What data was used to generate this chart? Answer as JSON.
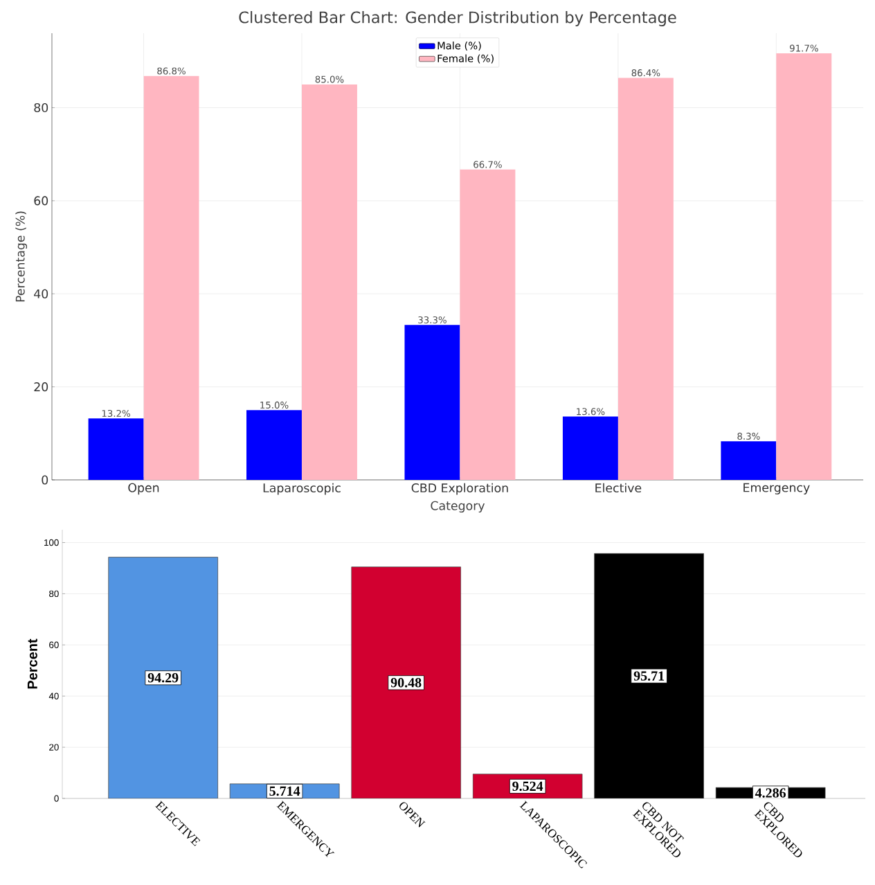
{
  "chart_data": [
    {
      "type": "bar",
      "title": "Clustered Bar Chart: Gender Distribution by Percentage",
      "xlabel": "Category",
      "ylabel": "Percentage (%)",
      "categories": [
        "Open",
        "Laparoscopic",
        "CBD Exploration",
        "Elective",
        "Emergency"
      ],
      "series": [
        {
          "name": "Male (%)",
          "color": "#0000ff",
          "values": [
            13.2,
            15.0,
            33.3,
            13.6,
            8.3
          ],
          "value_labels": [
            "13.2%",
            "15.0%",
            "33.3%",
            "13.6%",
            "8.3%"
          ]
        },
        {
          "name": "Female (%)",
          "color": "#ffb6c1",
          "values": [
            86.8,
            85.0,
            66.7,
            86.4,
            91.7
          ],
          "value_labels": [
            "86.8%",
            "85.0%",
            "66.7%",
            "86.4%",
            "91.7%"
          ]
        }
      ],
      "ylim": [
        0,
        96
      ],
      "yticks": [
        0,
        20,
        40,
        60,
        80
      ],
      "grid": true,
      "legend": "top"
    },
    {
      "type": "bar",
      "ylabel": "Percent",
      "categories": [
        "ELECTIVE",
        "EMERGENCY",
        "OPEN",
        "LAPAROSCOPIC",
        "CBD NOT EXPLORED",
        "CBD EXPLORED"
      ],
      "values": [
        94.29,
        5.714,
        90.48,
        9.524,
        95.71,
        4.286
      ],
      "colors": [
        "#5294e2",
        "#5294e2",
        "#d20030",
        "#d20030",
        "#000000",
        "#000000"
      ],
      "data_labels": true,
      "ylim": [
        0,
        105
      ],
      "yticks": [
        0,
        20,
        40,
        60,
        80,
        100
      ],
      "grid": "y"
    }
  ]
}
